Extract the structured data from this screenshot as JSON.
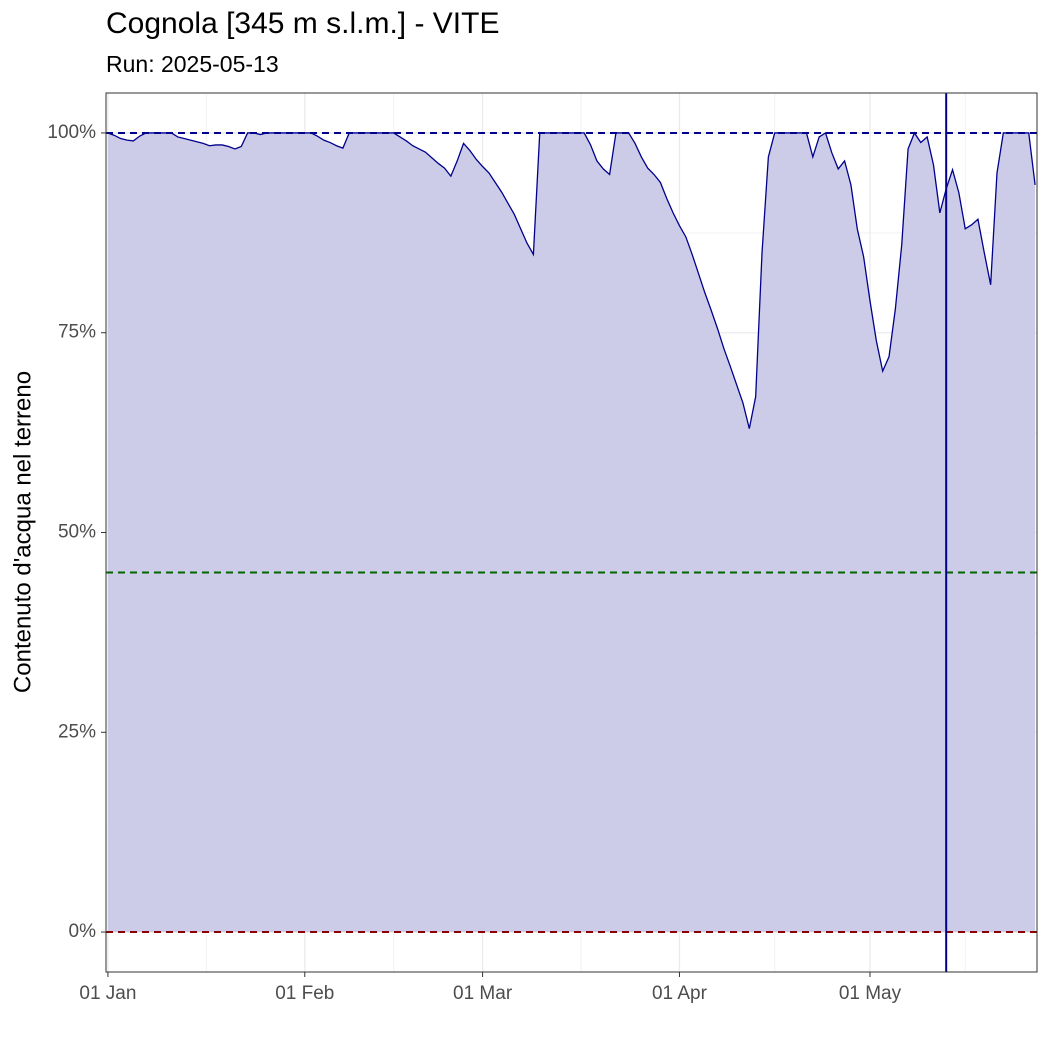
{
  "chart_data": {
    "type": "area",
    "title": "Cognola [345 m s.l.m.] - VITE",
    "subtitle": "Run: 2025-05-13",
    "ylabel": "Contenuto d'acqua nel terreno",
    "color": "#00008b",
    "fill": "#cccce9",
    "x": [
      "01 Jan",
      "02 Jan",
      "03 Jan",
      "04 Jan",
      "05 Jan",
      "06 Jan",
      "07 Jan",
      "08 Jan",
      "09 Jan",
      "10 Jan",
      "11 Jan",
      "12 Jan",
      "13 Jan",
      "14 Jan",
      "15 Jan",
      "16 Jan",
      "17 Jan",
      "18 Jan",
      "19 Jan",
      "20 Jan",
      "21 Jan",
      "22 Jan",
      "23 Jan",
      "24 Jan",
      "25 Jan",
      "26 Jan",
      "27 Jan",
      "28 Jan",
      "29 Jan",
      "30 Jan",
      "31 Jan",
      "01 Feb",
      "02 Feb",
      "03 Feb",
      "04 Feb",
      "05 Feb",
      "06 Feb",
      "07 Feb",
      "08 Feb",
      "09 Feb",
      "10 Feb",
      "11 Feb",
      "12 Feb",
      "13 Feb",
      "14 Feb",
      "15 Feb",
      "16 Feb",
      "17 Feb",
      "18 Feb",
      "19 Feb",
      "20 Feb",
      "21 Feb",
      "22 Feb",
      "23 Feb",
      "24 Feb",
      "25 Feb",
      "26 Feb",
      "27 Feb",
      "28 Feb",
      "01 Mar",
      "02 Mar",
      "03 Mar",
      "04 Mar",
      "05 Mar",
      "06 Mar",
      "07 Mar",
      "08 Mar",
      "09 Mar",
      "10 Mar",
      "11 Mar",
      "12 Mar",
      "13 Mar",
      "14 Mar",
      "15 Mar",
      "16 Mar",
      "17 Mar",
      "18 Mar",
      "19 Mar",
      "20 Mar",
      "21 Mar",
      "22 Mar",
      "23 Mar",
      "24 Mar",
      "25 Mar",
      "26 Mar",
      "27 Mar",
      "28 Mar",
      "29 Mar",
      "30 Mar",
      "31 Mar",
      "01 Apr",
      "02 Apr",
      "03 Apr",
      "04 Apr",
      "05 Apr",
      "06 Apr",
      "07 Apr",
      "08 Apr",
      "09 Apr",
      "10 Apr",
      "11 Apr",
      "12 Apr",
      "13 Apr",
      "14 Apr",
      "15 Apr",
      "16 Apr",
      "17 Apr",
      "18 Apr",
      "19 Apr",
      "20 Apr",
      "21 Apr",
      "22 Apr",
      "23 Apr",
      "24 Apr",
      "25 Apr",
      "26 Apr",
      "27 Apr",
      "28 Apr",
      "29 Apr",
      "30 Apr",
      "01 May",
      "02 May",
      "03 May",
      "04 May",
      "05 May",
      "06 May",
      "07 May",
      "08 May",
      "09 May",
      "10 May",
      "11 May",
      "12 May",
      "13 May",
      "14 May",
      "15 May",
      "16 May",
      "17 May",
      "18 May",
      "19 May",
      "20 May",
      "21 May",
      "22 May",
      "23 May",
      "24 May",
      "25 May",
      "26 May",
      "27 May"
    ],
    "values": [
      100,
      99.7,
      99.3,
      99.1,
      99.0,
      99.6,
      100,
      100,
      100,
      100,
      100,
      99.5,
      99.3,
      99.1,
      98.9,
      98.7,
      98.4,
      98.5,
      98.5,
      98.3,
      98.0,
      98.3,
      100,
      100,
      99.8,
      100,
      100,
      100,
      100,
      100,
      100,
      100,
      100,
      99.6,
      99.1,
      98.8,
      98.4,
      98.1,
      100,
      100,
      100,
      100,
      100,
      100,
      100,
      100,
      99.5,
      99.0,
      98.4,
      98.0,
      97.6,
      96.9,
      96.2,
      95.6,
      94.6,
      96.5,
      98.7,
      97.8,
      96.7,
      95.8,
      95.0,
      93.8,
      92.6,
      91.2,
      89.8,
      88.0,
      86.2,
      84.8,
      100,
      100,
      100,
      100,
      100,
      100,
      100,
      100,
      98.5,
      96.5,
      95.5,
      94.8,
      100,
      100,
      100,
      98.7,
      97.0,
      95.6,
      94.8,
      93.8,
      91.8,
      90.0,
      88.4,
      87.0,
      84.8,
      82.4,
      80.0,
      77.8,
      75.5,
      73.0,
      70.8,
      68.5,
      66.2,
      63.0,
      67.0,
      85.0,
      97.0,
      100,
      100,
      100,
      100,
      100,
      100,
      97.0,
      99.5,
      100,
      97.5,
      95.5,
      96.5,
      93.5,
      88.0,
      84.5,
      79.0,
      74.0,
      70.2,
      72.0,
      78.0,
      86.0,
      98.0,
      100,
      98.8,
      99.5,
      96.0,
      90.0,
      93.0,
      95.4,
      92.5,
      88.0,
      88.5,
      89.2,
      85.0,
      81.0,
      95.0,
      100,
      100,
      100,
      100,
      100,
      93.5
    ],
    "xticks": [
      "01 Jan",
      "01 Feb",
      "01 Mar",
      "01 Apr",
      "01 May"
    ],
    "ylim": [
      -5,
      105
    ],
    "yticks": [
      {
        "value": 0,
        "label": "0%"
      },
      {
        "value": 25,
        "label": "25%"
      },
      {
        "value": 50,
        "label": "50%"
      },
      {
        "value": 75,
        "label": "75%"
      },
      {
        "value": 100,
        "label": "100%"
      }
    ],
    "hlines": [
      {
        "value": 100,
        "color": "#00008b"
      },
      {
        "value": 45,
        "color": "#006400"
      },
      {
        "value": 0,
        "color": "#8b0000"
      }
    ],
    "vline": "13 May",
    "grid": true
  }
}
